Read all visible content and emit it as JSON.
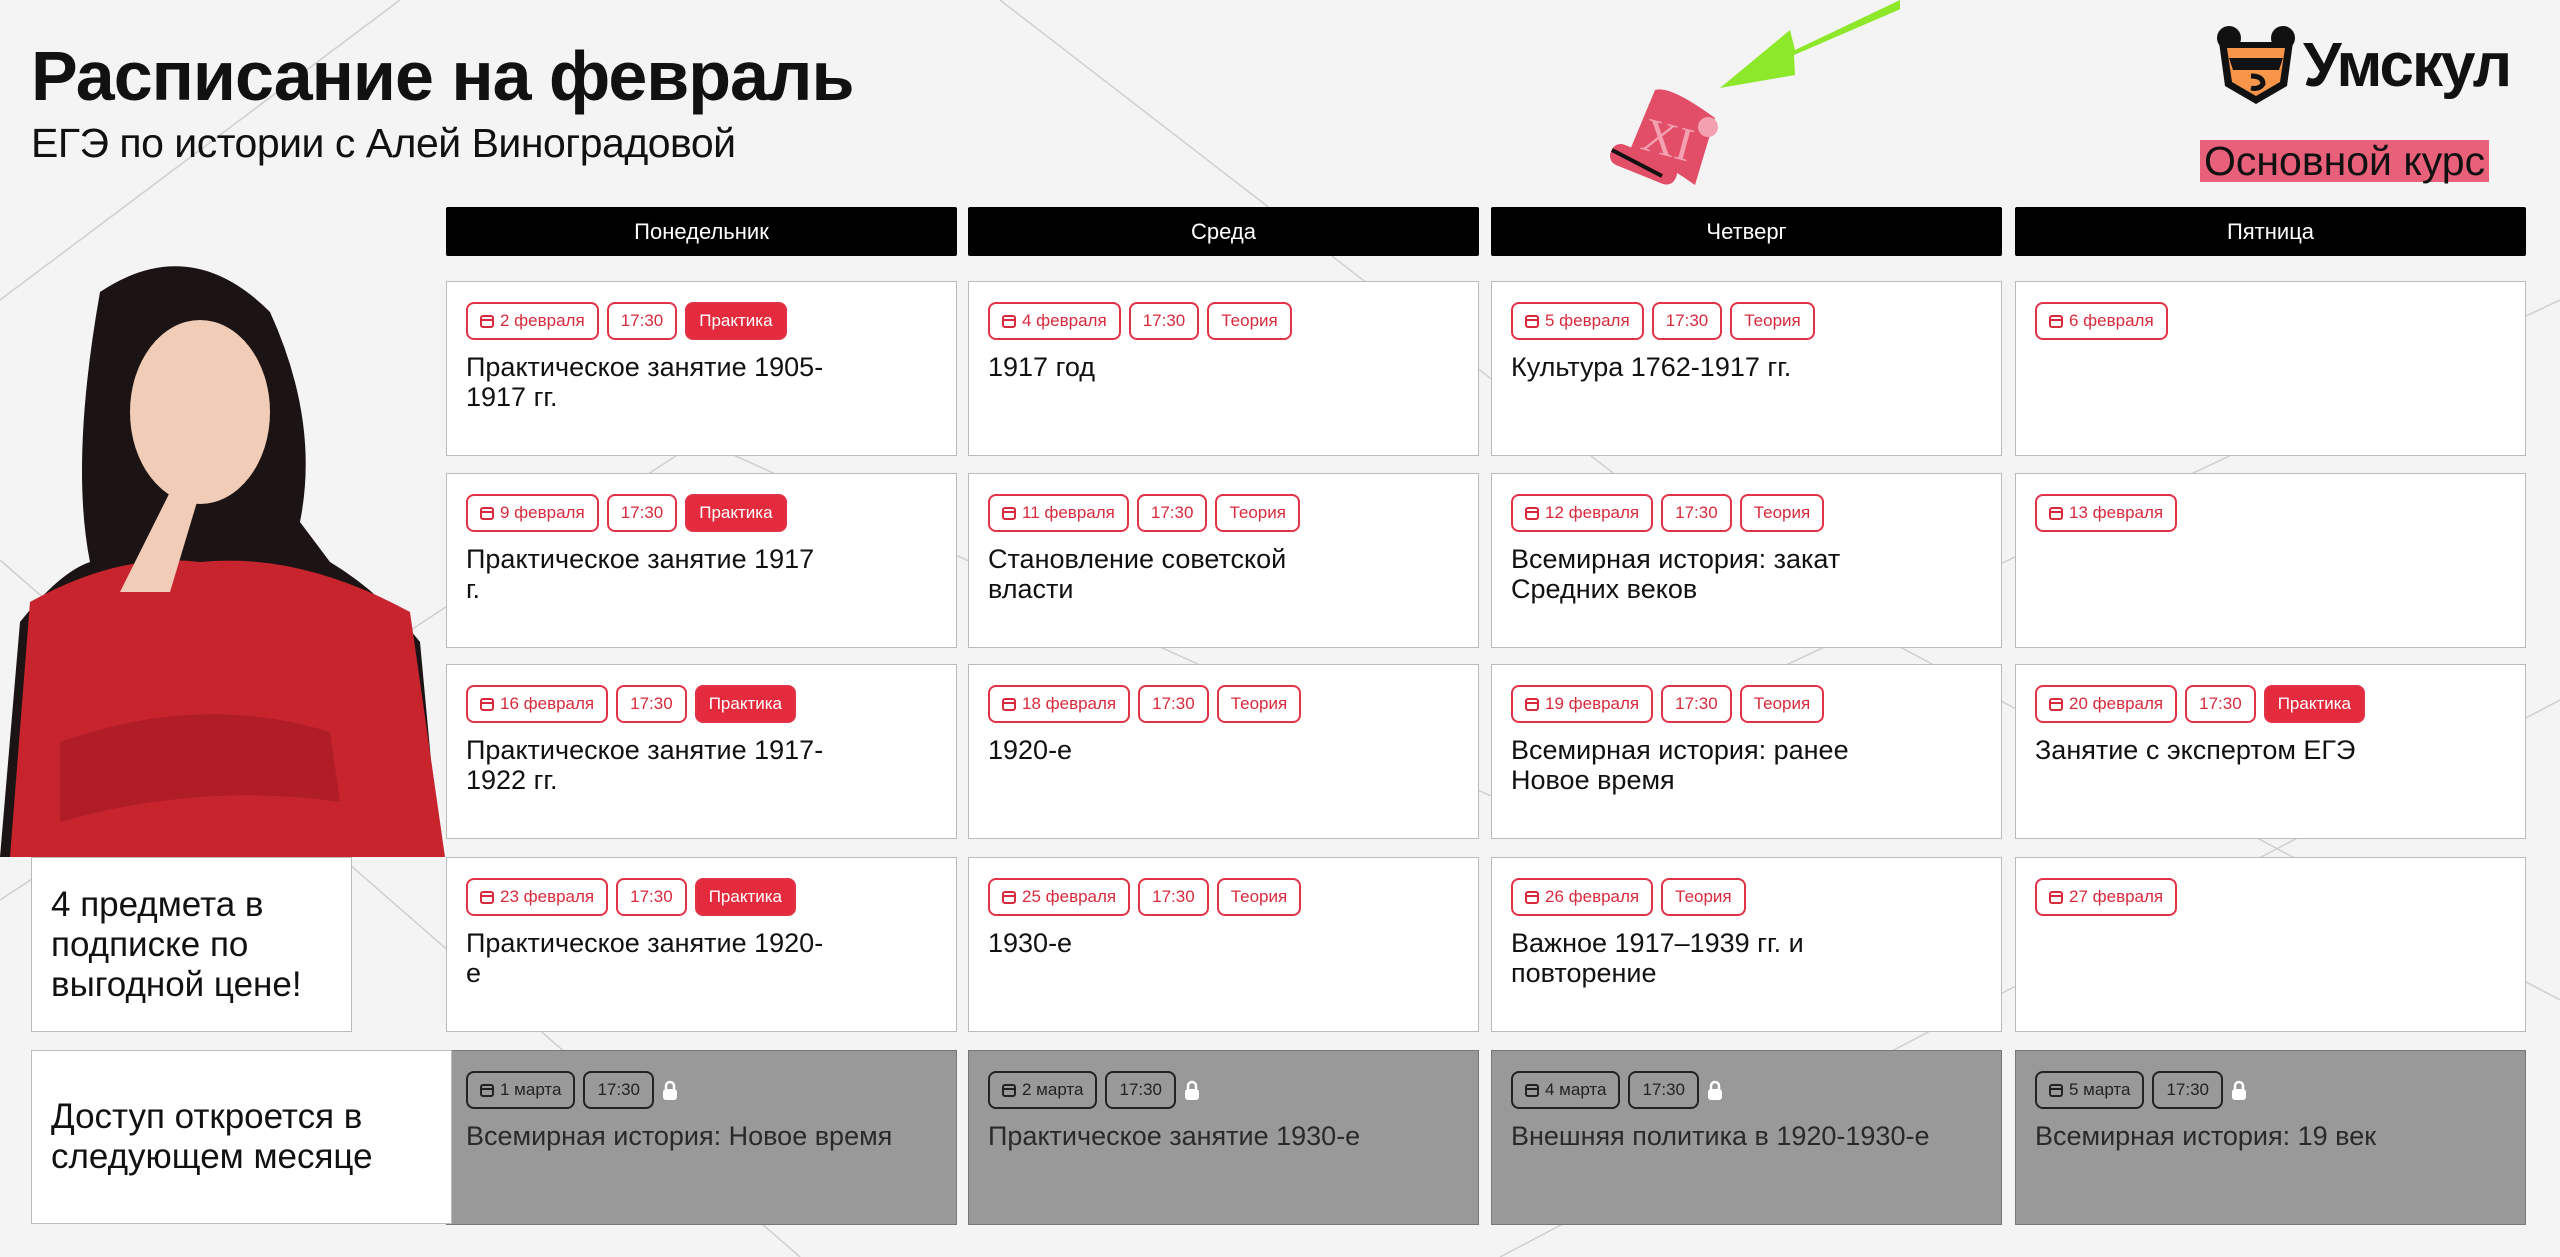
{
  "header": {
    "title": "Расписание на февраль",
    "subtitle": "ЕГЭ по истории с Алей Виноградовой"
  },
  "brand": {
    "logo_text": "Умскул",
    "course_label": "Основной курс",
    "accent": "#e42b3d",
    "course_bg": "#e8607a",
    "logo_orange": "#f7964a"
  },
  "decor": {
    "scroll_numeral": "XI",
    "arrow_color": "#8ee82a"
  },
  "days": [
    "Понедельник",
    "Среда",
    "Четверг",
    "Пятница"
  ],
  "rows": [
    [
      {
        "date": "2 февраля",
        "time": "17:30",
        "type": "Практика",
        "title": "Практическое занятие 1905-1917 гг."
      },
      {
        "date": "4 февраля",
        "time": "17:30",
        "type": "Теория",
        "title": "1917 год"
      },
      {
        "date": "5 февраля",
        "time": "17:30",
        "type": "Теория",
        "title": "Культура 1762-1917 гг."
      },
      {
        "date": "6 февраля"
      }
    ],
    [
      {
        "date": "9 февраля",
        "time": "17:30",
        "type": "Практика",
        "title": "Практическое занятие 1917 г."
      },
      {
        "date": "11 февраля",
        "time": "17:30",
        "type": "Теория",
        "title": "Становление советской власти"
      },
      {
        "date": "12 февраля",
        "time": "17:30",
        "type": "Теория",
        "title": "Всемирная история: закат Средних веков"
      },
      {
        "date": "13 февраля"
      }
    ],
    [
      {
        "date": "16 февраля",
        "time": "17:30",
        "type": "Практика",
        "title": "Практическое занятие 1917-1922 гг."
      },
      {
        "date": "18 февраля",
        "time": "17:30",
        "type": "Теория",
        "title": "1920-е"
      },
      {
        "date": "19 февраля",
        "time": "17:30",
        "type": "Теория",
        "title": "Всемирная история: ранее Новое время"
      },
      {
        "date": "20 февраля",
        "time": "17:30",
        "type": "Практика",
        "title": "Занятие с экспертом ЕГЭ"
      }
    ],
    [
      {
        "date": "23 февраля",
        "time": "17:30",
        "type": "Практика",
        "title": "Практическое занятие 1920-е"
      },
      {
        "date": "25 февраля",
        "time": "17:30",
        "type": "Теория",
        "title": "1930-е"
      },
      {
        "date": "26 февраля",
        "type": "Теория",
        "title": "Важное 1917–1939 гг. и повторение"
      },
      {
        "date": "27 февраля"
      }
    ]
  ],
  "locked_row": [
    {
      "date": "1 марта",
      "time": "17:30",
      "title": "Всемирная история: Новое время"
    },
    {
      "date": "2 марта",
      "time": "17:30",
      "title": "Практическое занятие 1930-е"
    },
    {
      "date": "4 марта",
      "time": "17:30",
      "title": "Внешняя политика в 1920-1930-е"
    },
    {
      "date": "5 марта",
      "time": "17:30",
      "title": "Всемирная история: 19 век"
    }
  ],
  "promo": {
    "subscription": "4 предмета в подписке по выгодной цене!",
    "access": "Доступ откроется в следующем месяце"
  }
}
